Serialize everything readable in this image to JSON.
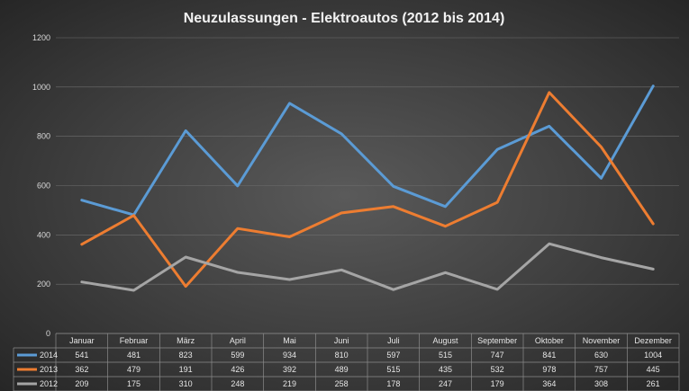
{
  "chart_data": {
    "type": "line",
    "title": "Neuzulassungen - Elektroautos (2012 bis 2014)",
    "categories": [
      "Januar",
      "Februar",
      "März",
      "April",
      "Mai",
      "Juni",
      "Juli",
      "August",
      "September",
      "Oktober",
      "November",
      "Dezember"
    ],
    "series": [
      {
        "name": "2014",
        "color": "#5b9bd5",
        "values": [
          541,
          481,
          823,
          599,
          934,
          810,
          597,
          515,
          747,
          841,
          630,
          1004
        ]
      },
      {
        "name": "2013",
        "color": "#ed7d31",
        "values": [
          362,
          479,
          191,
          426,
          392,
          489,
          515,
          435,
          532,
          978,
          757,
          445
        ]
      },
      {
        "name": "2012",
        "color": "#a5a5a5",
        "values": [
          209,
          175,
          310,
          248,
          219,
          258,
          178,
          247,
          179,
          364,
          308,
          261
        ]
      }
    ],
    "yticks": [
      0,
      200,
      400,
      600,
      800,
      1000,
      1200
    ],
    "ylim": [
      0,
      1200
    ],
    "grid": true,
    "legend": "data-table"
  }
}
